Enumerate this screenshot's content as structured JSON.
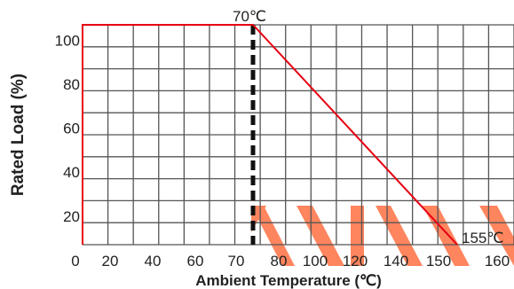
{
  "chart_data": {
    "type": "line",
    "title": "",
    "xlabel": "Ambient Temperature (℃)",
    "ylabel": "Rated Load (%)",
    "x_ticks": [
      "0",
      "20",
      "40",
      "60",
      "70",
      "80",
      "100",
      "120",
      "140",
      "150",
      "160"
    ],
    "y_ticks": [
      "100",
      "80",
      "60",
      "40",
      "20"
    ],
    "xlim": [
      0,
      160
    ],
    "ylim": [
      0,
      100
    ],
    "grid": true,
    "series": [
      {
        "x": [
          0,
          0,
          70,
          155
        ],
        "y": [
          0,
          100,
          100,
          0
        ]
      }
    ],
    "reference_line": {
      "x": 70,
      "style": "dashed"
    },
    "annotations": [
      {
        "text": "70℃",
        "x": 70,
        "y": 100
      },
      {
        "text": "155℃",
        "x": 155,
        "y": 0
      }
    ],
    "colors": {
      "line": "#e60012",
      "grid": "#555555",
      "dashed": "#111111",
      "watermark": "#ff7043"
    }
  }
}
